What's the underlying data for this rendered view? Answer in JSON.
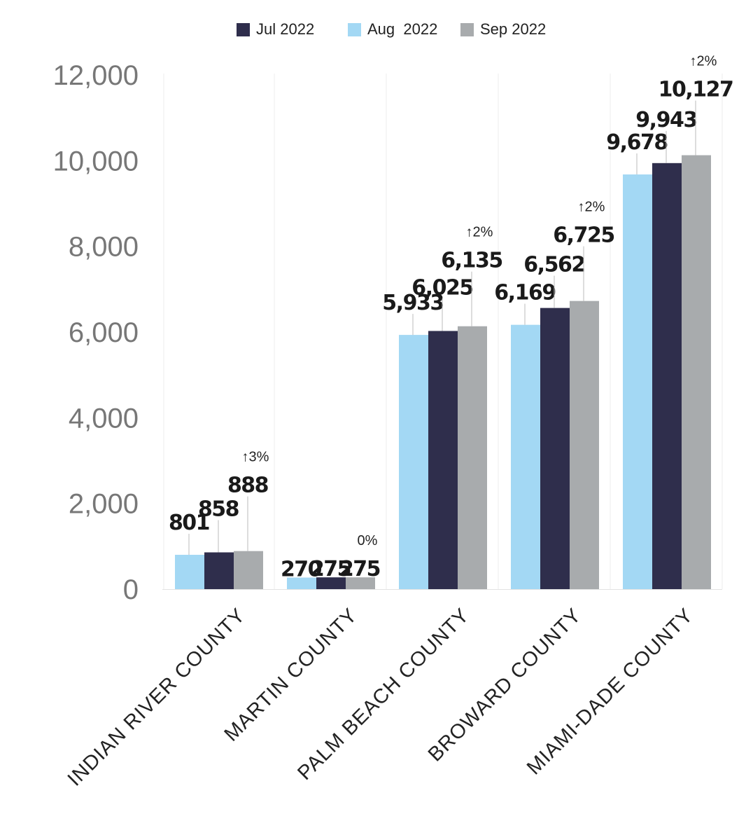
{
  "chart_data": {
    "type": "bar",
    "categories": [
      "INDIAN RIVER COUNTY",
      "MARTIN COUNTY",
      "PALM BEACH COUNTY",
      "BROWARD COUNTY",
      "MIAMI-DADE COUNTY"
    ],
    "series": [
      {
        "name": "Aug  2022",
        "color": "#a3d8f4",
        "values": [
          801,
          270,
          5933,
          6169,
          9678
        ],
        "labels": [
          "801",
          "270",
          "5,933",
          "6,169",
          "9,678"
        ]
      },
      {
        "name": "Jul 2022",
        "color": "#2f2e4c",
        "values": [
          858,
          275,
          6025,
          6562,
          9943
        ],
        "labels": [
          "858",
          "275",
          "6,025",
          "6,562",
          "9,943"
        ]
      },
      {
        "name": "Sep 2022",
        "color": "#a8abad",
        "values": [
          888,
          275,
          6135,
          6725,
          10127
        ],
        "labels": [
          "888",
          "275",
          "6,135",
          "6,725",
          "10,127"
        ]
      }
    ],
    "legend_order": [
      "Jul 2022",
      "Aug  2022",
      "Sep 2022"
    ],
    "change_labels": [
      "↑3%",
      "0%",
      "↑2%",
      "↑2%",
      "↑2%"
    ],
    "yticks": [
      0,
      2000,
      4000,
      6000,
      8000,
      10000,
      12000
    ],
    "ytick_labels": [
      "0",
      "2,000",
      "4,000",
      "6,000",
      "8,000",
      "10,000",
      "12,000"
    ],
    "ylim": [
      0,
      12000
    ],
    "legend_position": "top-center",
    "grid": "vertical separators"
  }
}
